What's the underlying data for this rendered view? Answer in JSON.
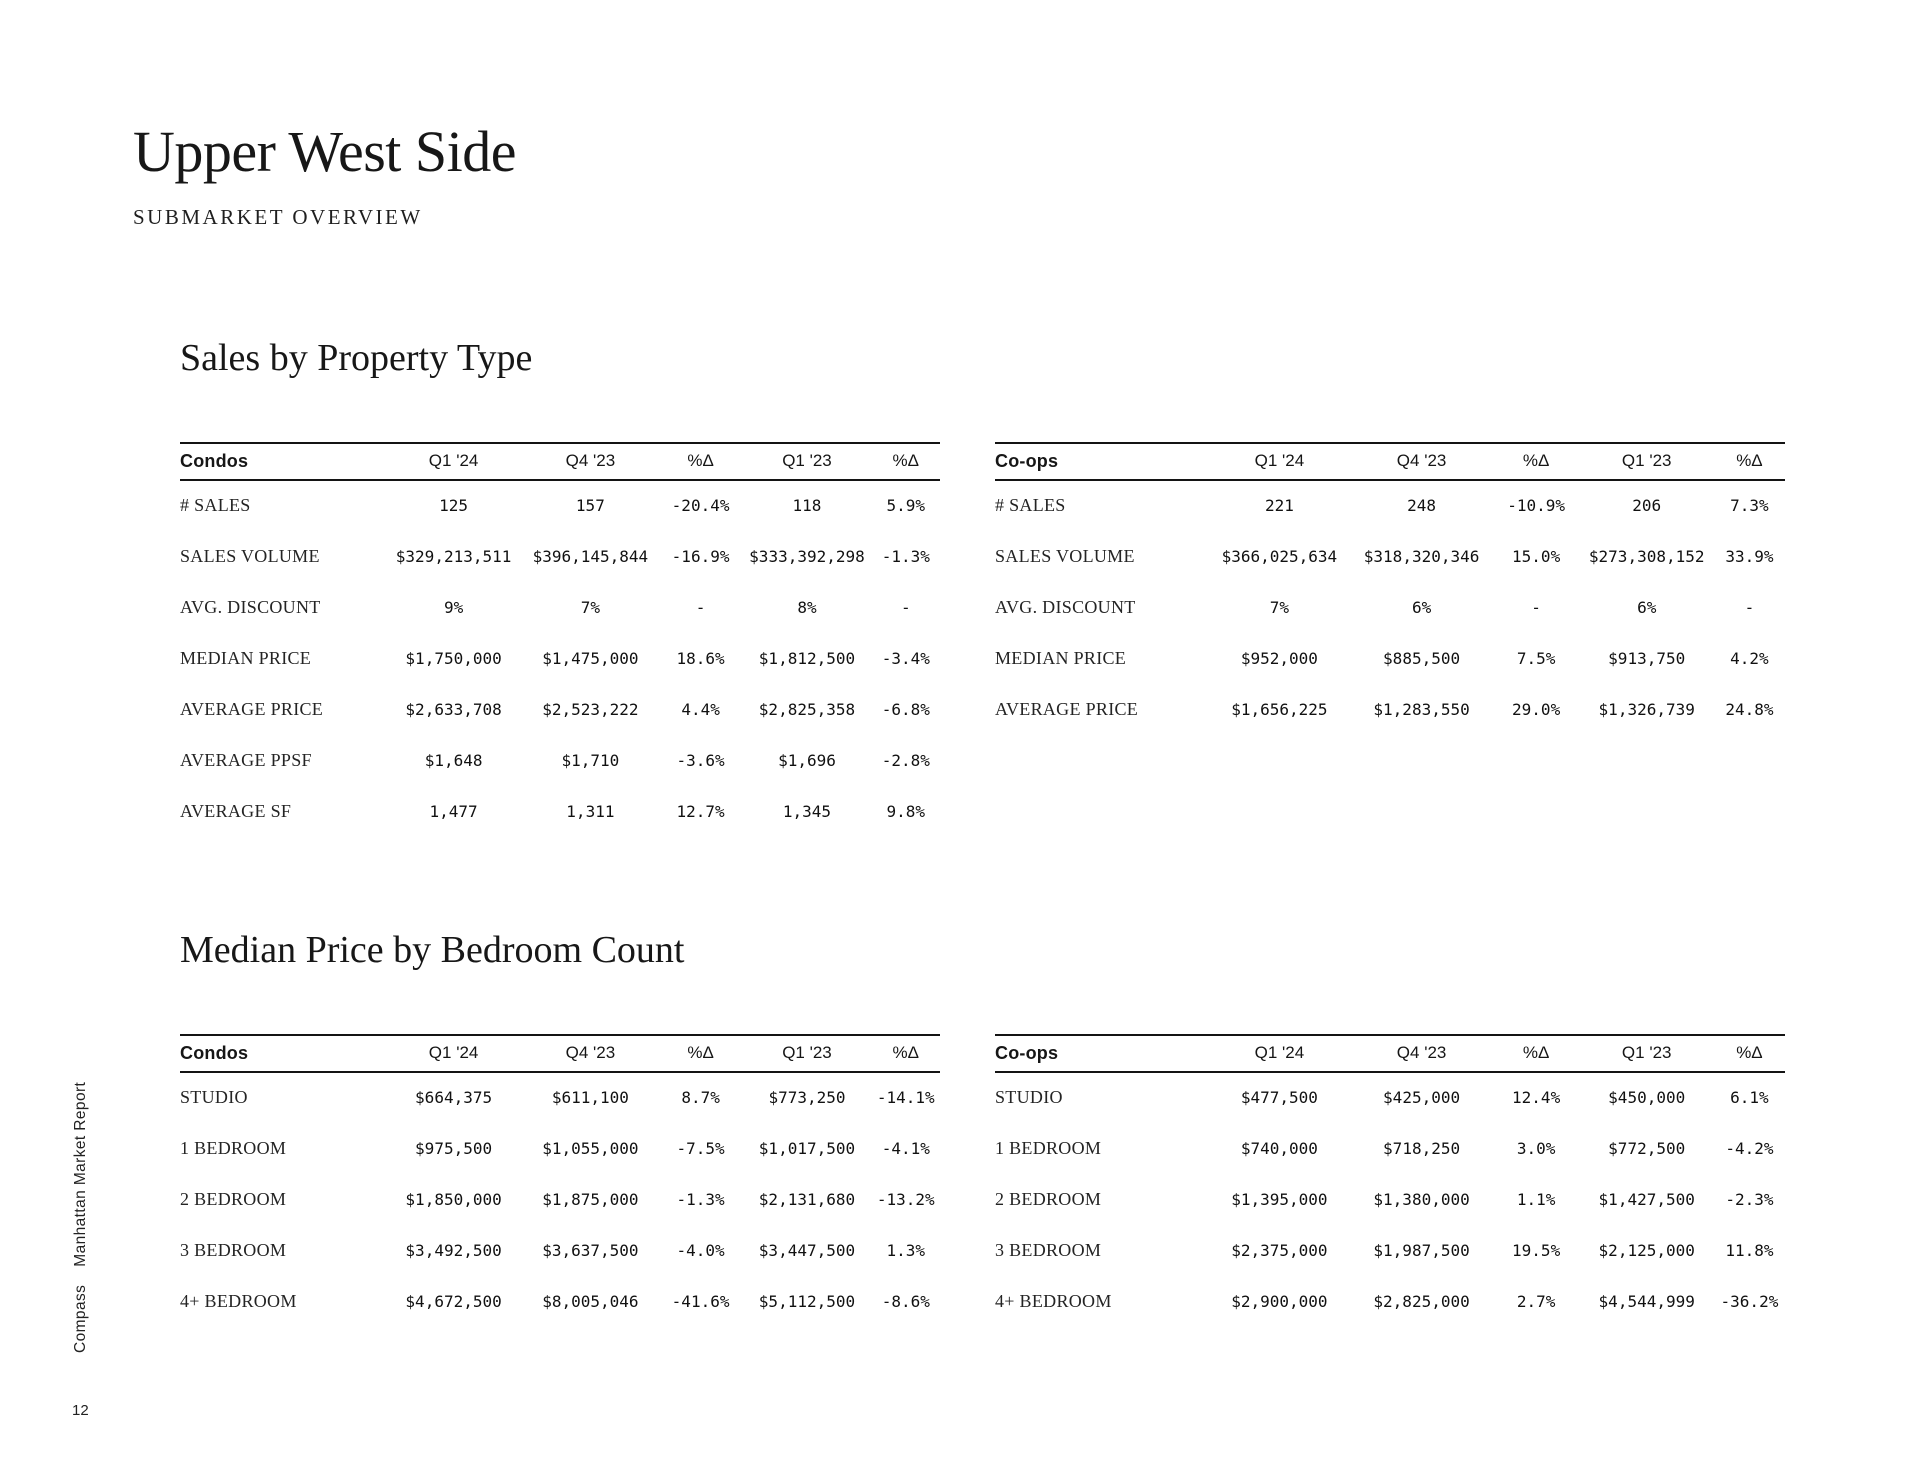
{
  "page": {
    "title": "Upper West Side",
    "subtitle": "SUBMARKET OVERVIEW",
    "page_number": "12",
    "sidebar": {
      "report_name": "Manhattan Market Report",
      "brand": "Compass"
    }
  },
  "colors": {
    "background": "#ffffff",
    "text": "#1b1b1b",
    "rule": "#141414"
  },
  "sales_by_property_type": {
    "heading": "Sales by Property Type",
    "columns": [
      "Q1 '24",
      "Q4 '23",
      "%Δ",
      "Q1 '23",
      "%Δ"
    ],
    "condos": {
      "entity": "Condos",
      "rows": [
        {
          "label": "# SALES",
          "values": [
            "125",
            "157",
            "-20.4%",
            "118",
            "5.9%"
          ]
        },
        {
          "label": "SALES VOLUME",
          "values": [
            "$329,213,511",
            "$396,145,844",
            "-16.9%",
            "$333,392,298",
            "-1.3%"
          ]
        },
        {
          "label": "AVG. DISCOUNT",
          "values": [
            "9%",
            "7%",
            "-",
            "8%",
            "-"
          ]
        },
        {
          "label": "MEDIAN PRICE",
          "values": [
            "$1,750,000",
            "$1,475,000",
            "18.6%",
            "$1,812,500",
            "-3.4%"
          ]
        },
        {
          "label": "AVERAGE PRICE",
          "values": [
            "$2,633,708",
            "$2,523,222",
            "4.4%",
            "$2,825,358",
            "-6.8%"
          ]
        },
        {
          "label": "AVERAGE PPSF",
          "values": [
            "$1,648",
            "$1,710",
            "-3.6%",
            "$1,696",
            "-2.8%"
          ]
        },
        {
          "label": "AVERAGE SF",
          "values": [
            "1,477",
            "1,311",
            "12.7%",
            "1,345",
            "9.8%"
          ]
        }
      ]
    },
    "coops": {
      "entity": "Co-ops",
      "rows": [
        {
          "label": "# SALES",
          "values": [
            "221",
            "248",
            "-10.9%",
            "206",
            "7.3%"
          ]
        },
        {
          "label": "SALES VOLUME",
          "values": [
            "$366,025,634",
            "$318,320,346",
            "15.0%",
            "$273,308,152",
            "33.9%"
          ]
        },
        {
          "label": "AVG. DISCOUNT",
          "values": [
            "7%",
            "6%",
            "-",
            "6%",
            "-"
          ]
        },
        {
          "label": "MEDIAN PRICE",
          "values": [
            "$952,000",
            "$885,500",
            "7.5%",
            "$913,750",
            "4.2%"
          ]
        },
        {
          "label": "AVERAGE PRICE",
          "values": [
            "$1,656,225",
            "$1,283,550",
            "29.0%",
            "$1,326,739",
            "24.8%"
          ]
        }
      ]
    }
  },
  "median_price_by_bedroom_count": {
    "heading": "Median Price by Bedroom Count",
    "columns": [
      "Q1 '24",
      "Q4 '23",
      "%Δ",
      "Q1 '23",
      "%Δ"
    ],
    "condos": {
      "entity": "Condos",
      "rows": [
        {
          "label": "STUDIO",
          "values": [
            "$664,375",
            "$611,100",
            "8.7%",
            "$773,250",
            "-14.1%"
          ]
        },
        {
          "label": "1 BEDROOM",
          "values": [
            "$975,500",
            "$1,055,000",
            "-7.5%",
            "$1,017,500",
            "-4.1%"
          ]
        },
        {
          "label": "2 BEDROOM",
          "values": [
            "$1,850,000",
            "$1,875,000",
            "-1.3%",
            "$2,131,680",
            "-13.2%"
          ]
        },
        {
          "label": "3 BEDROOM",
          "values": [
            "$3,492,500",
            "$3,637,500",
            "-4.0%",
            "$3,447,500",
            "1.3%"
          ]
        },
        {
          "label": "4+ BEDROOM",
          "values": [
            "$4,672,500",
            "$8,005,046",
            "-41.6%",
            "$5,112,500",
            "-8.6%"
          ]
        }
      ]
    },
    "coops": {
      "entity": "Co-ops",
      "rows": [
        {
          "label": "STUDIO",
          "values": [
            "$477,500",
            "$425,000",
            "12.4%",
            "$450,000",
            "6.1%"
          ]
        },
        {
          "label": "1 BEDROOM",
          "values": [
            "$740,000",
            "$718,250",
            "3.0%",
            "$772,500",
            "-4.2%"
          ]
        },
        {
          "label": "2 BEDROOM",
          "values": [
            "$1,395,000",
            "$1,380,000",
            "1.1%",
            "$1,427,500",
            "-2.3%"
          ]
        },
        {
          "label": "3 BEDROOM",
          "values": [
            "$2,375,000",
            "$1,987,500",
            "19.5%",
            "$2,125,000",
            "11.8%"
          ]
        },
        {
          "label": "4+ BEDROOM",
          "values": [
            "$2,900,000",
            "$2,825,000",
            "2.7%",
            "$4,544,999",
            "-36.2%"
          ]
        }
      ]
    }
  }
}
